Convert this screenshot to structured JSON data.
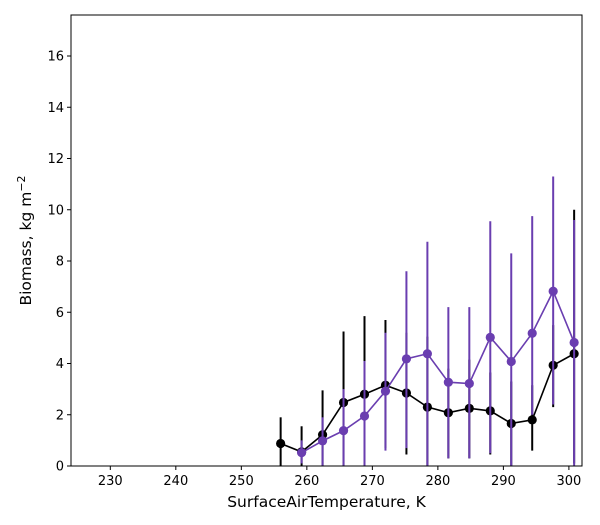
{
  "chart_data": {
    "type": "line",
    "xlabel": "SurfaceAirTemperature,  K",
    "ylabel_text": "Biomass,  kg m",
    "ylabel_exponent": "−2",
    "xlim": [
      224,
      302
    ],
    "ylim": [
      0,
      17.6
    ],
    "xticks": [
      230,
      240,
      250,
      260,
      270,
      280,
      290,
      300
    ],
    "yticks": [
      0,
      2,
      4,
      6,
      8,
      10,
      12,
      14,
      16
    ],
    "grid": false,
    "legend": false,
    "series": [
      {
        "color": "#000000",
        "x": [
          256,
          259.2,
          262.4,
          265.6,
          268.8,
          272,
          275.2,
          278.4,
          281.6,
          284.8,
          288,
          291.2,
          294.4,
          297.6,
          300.8
        ],
        "y": [
          0.88,
          0.55,
          1.22,
          2.48,
          2.8,
          3.15,
          2.85,
          2.3,
          2.08,
          2.25,
          2.15,
          1.66,
          1.8,
          3.93,
          4.38
        ],
        "err_low": [
          0,
          0,
          0,
          0,
          0,
          0.7,
          0.45,
          0,
          0.3,
          0.3,
          0.45,
          0,
          0.6,
          2.3,
          0.1
        ],
        "err_high": [
          1.9,
          1.55,
          2.95,
          5.25,
          5.85,
          5.7,
          5.2,
          5.05,
          3.8,
          4.15,
          3.65,
          3.3,
          3.15,
          5.5,
          10.0
        ]
      },
      {
        "color": "#6a3eb0",
        "x": [
          259.2,
          262.4,
          265.6,
          268.8,
          272,
          275.2,
          278.4,
          281.6,
          284.8,
          288,
          291.2,
          294.4,
          297.6,
          300.8
        ],
        "y": [
          0.52,
          0.98,
          1.38,
          1.95,
          2.92,
          4.18,
          4.38,
          3.27,
          3.22,
          5.02,
          4.08,
          5.18,
          6.82,
          4.82
        ],
        "err_low": [
          0.1,
          0,
          0,
          0,
          0.6,
          0.7,
          0,
          0.3,
          0.3,
          0.5,
          0,
          2.0,
          2.4,
          0
        ],
        "err_high": [
          1.0,
          1.9,
          3.0,
          4.1,
          5.2,
          7.6,
          8.75,
          6.2,
          6.2,
          9.55,
          8.3,
          9.75,
          11.3,
          9.6
        ]
      }
    ]
  }
}
